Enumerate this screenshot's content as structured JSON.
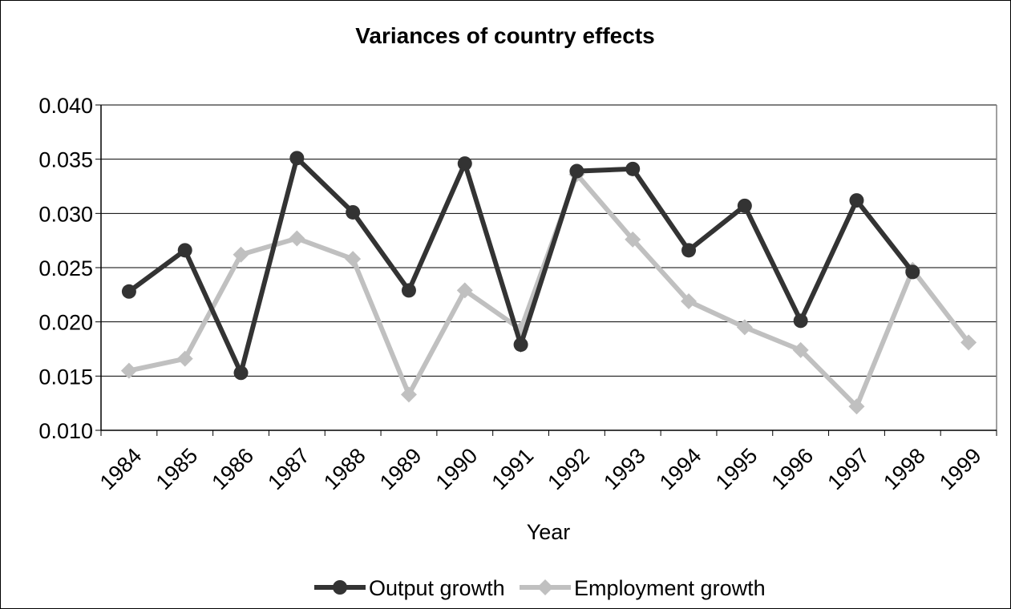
{
  "chart_data": {
    "type": "line",
    "title": "Variances of country effects",
    "xlabel": "Year",
    "ylabel": "",
    "ylim": [
      0.01,
      0.04
    ],
    "yticks": [
      "0.010",
      "0.015",
      "0.020",
      "0.025",
      "0.030",
      "0.035",
      "0.040"
    ],
    "ytick_values": [
      0.01,
      0.015,
      0.02,
      0.025,
      0.03,
      0.035,
      0.04
    ],
    "categories": [
      "1984",
      "1985",
      "1986",
      "1987",
      "1988",
      "1989",
      "1990",
      "1991",
      "1992",
      "1993",
      "1994",
      "1995",
      "1996",
      "1997",
      "1998",
      "1999"
    ],
    "grid": true,
    "legend_position": "bottom",
    "series": [
      {
        "name": "Output growth",
        "color": "#333333",
        "marker": "circle",
        "values": [
          0.0228,
          0.0266,
          0.0153,
          0.0351,
          0.0301,
          0.0229,
          0.0346,
          0.0179,
          0.0339,
          0.0341,
          0.0266,
          0.0307,
          0.0201,
          0.0312,
          0.0246,
          null
        ]
      },
      {
        "name": "Employment growth",
        "color": "#c0c0c0",
        "marker": "diamond",
        "values": [
          0.0155,
          0.0166,
          0.0262,
          0.0277,
          0.0258,
          0.0133,
          0.0229,
          0.0193,
          0.0336,
          0.0276,
          0.0219,
          0.0195,
          0.0174,
          0.0122,
          0.0248,
          0.0181
        ]
      }
    ]
  }
}
